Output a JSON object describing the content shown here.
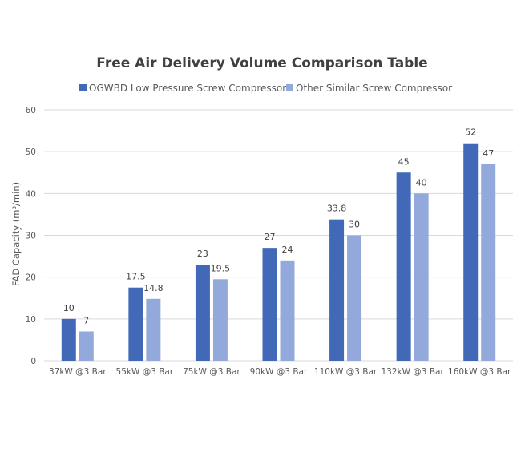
{
  "chart_data": {
    "type": "bar",
    "title": "Free Air Delivery Volume Comparison Table",
    "xlabel": "",
    "ylabel": "FAD Capacity (m³/min)",
    "ylim": [
      0,
      60
    ],
    "yticks": [
      0,
      10,
      20,
      30,
      40,
      50,
      60
    ],
    "grid": true,
    "legend_position": "top",
    "categories": [
      "37kW @3 Bar",
      "55kW @3 Bar",
      "75kW @3 Bar",
      "90kW @3 Bar",
      "110kW @3 Bar",
      "132kW @3 Bar",
      "160kW @3 Bar"
    ],
    "series": [
      {
        "name": "OGWBD Low Pressure Screw Compressor",
        "color": "#4169b8",
        "values": [
          10,
          17.5,
          23,
          27,
          33.8,
          45,
          52
        ]
      },
      {
        "name": "Other Similar Screw Compressor",
        "color": "#93a9dc",
        "values": [
          7,
          14.8,
          19.5,
          24,
          30,
          40,
          47
        ]
      }
    ]
  }
}
